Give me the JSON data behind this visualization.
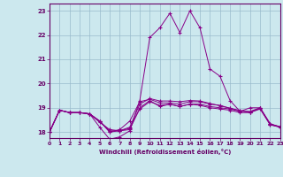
{
  "xlabel": "Windchill (Refroidissement éolien,°C)",
  "bg_color": "#cce8ee",
  "grid_color": "#99bbcc",
  "line_color": "#880088",
  "xlim": [
    0,
    23
  ],
  "ylim": [
    17.75,
    23.3
  ],
  "yticks": [
    18,
    19,
    20,
    21,
    22,
    23
  ],
  "xticks": [
    0,
    1,
    2,
    3,
    4,
    5,
    6,
    7,
    8,
    9,
    10,
    11,
    12,
    13,
    14,
    15,
    16,
    17,
    18,
    19,
    20,
    21,
    22,
    23
  ],
  "series": [
    [
      18.0,
      18.9,
      18.8,
      18.8,
      18.75,
      18.2,
      17.7,
      17.8,
      18.05,
      19.3,
      21.9,
      22.3,
      22.9,
      22.1,
      23.0,
      22.3,
      20.6,
      20.3,
      19.3,
      18.85,
      19.0,
      19.0,
      18.3,
      18.2
    ],
    [
      18.0,
      18.9,
      18.8,
      18.8,
      18.75,
      18.45,
      18.05,
      18.05,
      18.15,
      18.95,
      19.25,
      19.1,
      19.15,
      19.05,
      19.15,
      19.1,
      19.0,
      18.95,
      18.9,
      18.8,
      18.8,
      18.95,
      18.3,
      18.2
    ],
    [
      18.0,
      18.9,
      18.8,
      18.8,
      18.75,
      18.4,
      18.1,
      18.05,
      18.1,
      19.0,
      19.3,
      19.05,
      19.15,
      19.05,
      19.15,
      19.15,
      19.05,
      19.0,
      18.95,
      18.85,
      18.85,
      19.0,
      18.35,
      18.2
    ],
    [
      18.0,
      18.9,
      18.8,
      18.8,
      18.75,
      18.45,
      18.0,
      18.1,
      18.45,
      19.25,
      19.35,
      19.2,
      19.2,
      19.15,
      19.25,
      19.25,
      19.15,
      19.1,
      18.98,
      18.88,
      18.82,
      18.98,
      18.32,
      18.22
    ],
    [
      18.0,
      18.9,
      18.8,
      18.8,
      18.75,
      18.45,
      18.0,
      18.05,
      18.2,
      19.15,
      19.38,
      19.28,
      19.28,
      19.25,
      19.3,
      19.28,
      19.18,
      19.08,
      18.98,
      18.88,
      18.82,
      18.98,
      18.32,
      18.22
    ]
  ]
}
